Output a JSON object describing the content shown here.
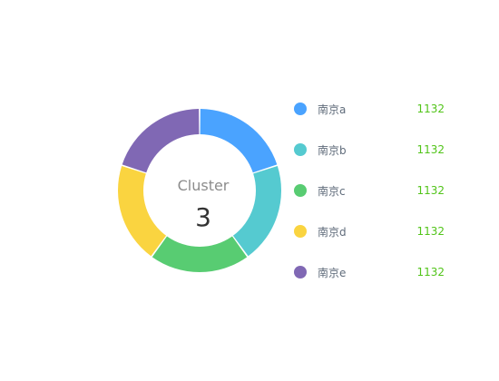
{
  "chart_data": {
    "type": "pie",
    "variant": "donut",
    "center": {
      "label": "Cluster",
      "value": "3"
    },
    "categories": [
      "南京a",
      "南京b",
      "南京c",
      "南京d",
      "南京e"
    ],
    "values": [
      1132,
      1132,
      1132,
      1132,
      1132
    ],
    "value_labels": [
      "1132",
      "1132",
      "1132",
      "1132",
      "1132"
    ],
    "colors": [
      "#4aa3ff",
      "#55cad0",
      "#58cc72",
      "#fad440",
      "#8068b4"
    ],
    "legend_position": "right",
    "value_color": "#52c41a"
  }
}
